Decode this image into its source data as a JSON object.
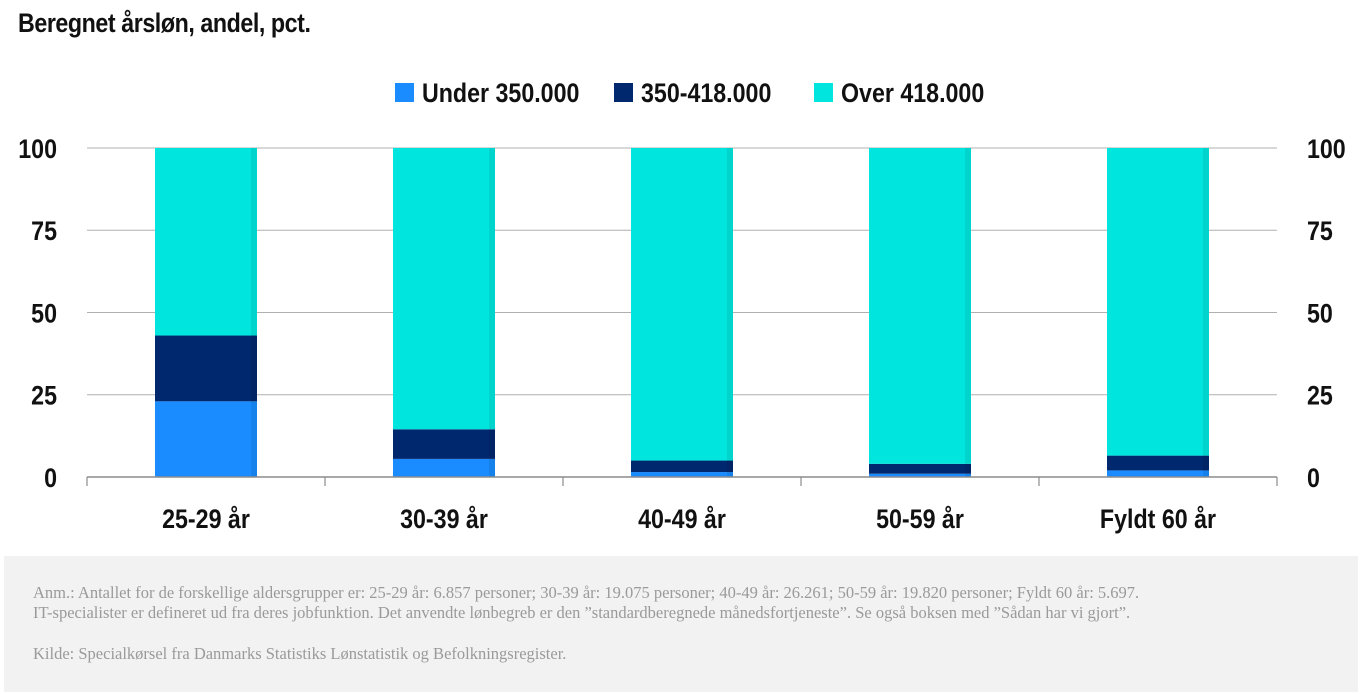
{
  "title": "Beregnet årsløn, andel, pct.",
  "note": {
    "line1": "Anm.: Antallet for de forskellige aldersgrupper er: 25-29 år: 6.857 personer; 30-39 år: 19.075 personer; 40-49 år: 26.261; 50-59 år: 19.820 personer; Fyldt 60 år: 5.697.",
    "line2": "IT-specialister er defineret ud fra deres jobfunktion. Det anvendte lønbegreb er den ”standardberegnede månedsfortjeneste”. Se også boksen med ”Sådan har vi gjort”.",
    "source": "Kilde: Specialkørsel fra Danmarks Statistiks Lønstatistik og Befolkningsregister."
  },
  "chart_data": {
    "type": "bar",
    "stacked": true,
    "title": "Beregnet årsløn, andel, pct.",
    "categories": [
      "25-29 år",
      "30-39 år",
      "40-49 år",
      "50-59 år",
      "Fyldt 60 år"
    ],
    "series": [
      {
        "name": "Under 350.000",
        "color": "#1a8cff",
        "values": [
          23,
          5.5,
          1.5,
          1,
          2
        ]
      },
      {
        "name": "350-418.000",
        "color": "#00286e",
        "values": [
          20,
          9,
          3.5,
          3,
          4.5
        ]
      },
      {
        "name": "Over 418.000",
        "color": "#00e6de",
        "values": [
          57,
          85.5,
          95,
          96,
          93.5
        ]
      }
    ],
    "ylim": [
      0,
      100
    ],
    "yticks": [
      0,
      25,
      50,
      75,
      100
    ],
    "y_axis_left": true,
    "y_axis_right": true,
    "grid": true,
    "legend_position": "top-center"
  }
}
